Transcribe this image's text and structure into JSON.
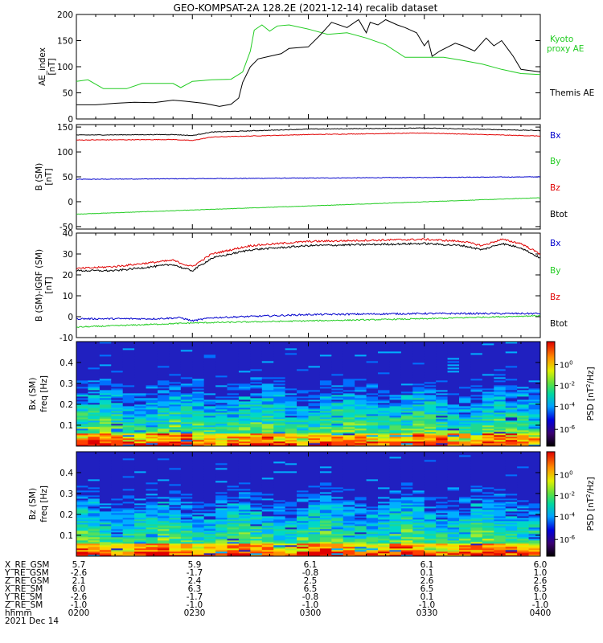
{
  "title": "GEO-KOMPSAT-2A 128.2E (2021-12-14) recalib dataset",
  "colors": {
    "black": "#000000",
    "red": "#e00000",
    "green": "#22cc22",
    "blue": "#0000cc",
    "kyoto": "#22cc22"
  },
  "chart_data": [
    {
      "type": "line",
      "ylabel": "AE_index [nT]",
      "ylim": [
        0,
        200
      ],
      "yticks": [
        0,
        50,
        100,
        150,
        200
      ],
      "series": [
        {
          "name": "Themis AE",
          "color": "#000000",
          "x": [
            "02:00",
            "02:05",
            "02:10",
            "02:15",
            "02:20",
            "02:25",
            "02:28",
            "02:33",
            "02:37",
            "02:40",
            "02:42",
            "02:43",
            "02:45",
            "02:47",
            "02:50",
            "02:53",
            "02:55",
            "03:00",
            "03:03",
            "03:06",
            "03:10",
            "03:13",
            "03:15",
            "03:16",
            "03:18",
            "03:20",
            "03:23",
            "03:25",
            "03:28",
            "03:30",
            "03:31",
            "03:32",
            "03:34",
            "03:38",
            "03:40",
            "03:43",
            "03:46",
            "03:48",
            "03:50",
            "03:53",
            "03:55",
            "04:00"
          ],
          "y": [
            27,
            27,
            30,
            32,
            31,
            36,
            34,
            30,
            24,
            28,
            40,
            70,
            100,
            115,
            120,
            125,
            135,
            138,
            160,
            185,
            175,
            190,
            165,
            185,
            180,
            190,
            180,
            175,
            165,
            140,
            150,
            120,
            130,
            145,
            140,
            130,
            155,
            140,
            150,
            120,
            95,
            90
          ]
        },
        {
          "name": "Kyoto proxy AE",
          "color": "#22cc22",
          "x": [
            "02:00",
            "02:03",
            "02:07",
            "02:10",
            "02:13",
            "02:17",
            "02:20",
            "02:25",
            "02:27",
            "02:30",
            "02:35",
            "02:40",
            "02:43",
            "02:45",
            "02:46",
            "02:48",
            "02:50",
            "02:52",
            "02:55",
            "03:00",
            "03:05",
            "03:10",
            "03:15",
            "03:20",
            "03:25",
            "03:30",
            "03:35",
            "03:40",
            "03:45",
            "03:50",
            "03:55",
            "04:00"
          ],
          "y": [
            72,
            75,
            58,
            58,
            58,
            68,
            68,
            68,
            60,
            72,
            75,
            76,
            90,
            130,
            170,
            180,
            168,
            178,
            180,
            172,
            162,
            165,
            155,
            142,
            118,
            118,
            118,
            112,
            105,
            95,
            87,
            85
          ]
        }
      ]
    },
    {
      "type": "line",
      "ylabel": "B (SM) [nT]",
      "ylim": [
        -55,
        155
      ],
      "yticks": [
        -50,
        0,
        50,
        100,
        150
      ],
      "series": [
        {
          "name": "Bx",
          "color": "#0000cc",
          "x": [
            "02:00",
            "04:00"
          ],
          "y": [
            45,
            50
          ]
        },
        {
          "name": "By",
          "color": "#22cc22",
          "x": [
            "02:00",
            "04:00"
          ],
          "y": [
            -25,
            8
          ]
        },
        {
          "name": "Bz",
          "color": "#e00000",
          "x": [
            "02:00",
            "02:25",
            "02:30",
            "02:35",
            "03:00",
            "03:30",
            "04:00"
          ],
          "y": [
            124,
            125,
            123,
            130,
            135,
            138,
            132
          ]
        },
        {
          "name": "Btot",
          "color": "#000000",
          "x": [
            "02:00",
            "02:25",
            "02:30",
            "02:35",
            "03:00",
            "03:30",
            "04:00"
          ],
          "y": [
            134,
            135,
            133,
            140,
            146,
            148,
            143
          ]
        }
      ]
    },
    {
      "type": "line",
      "ylabel": "B (SM)-IGRF (SM) [nT]",
      "ylim": [
        -10,
        40
      ],
      "yticks": [
        -10,
        0,
        10,
        20,
        30,
        40
      ],
      "series": [
        {
          "name": "Bx",
          "color": "#0000cc",
          "x": [
            "02:00",
            "02:20",
            "02:27",
            "02:30",
            "02:35",
            "03:00",
            "03:30",
            "04:00"
          ],
          "y": [
            -1,
            -1,
            -0.5,
            -2,
            -0.5,
            1,
            1.5,
            1.5
          ]
        },
        {
          "name": "By",
          "color": "#22cc22",
          "x": [
            "02:00",
            "02:30",
            "03:00",
            "03:30",
            "04:00"
          ],
          "y": [
            -5,
            -3,
            -2,
            -1,
            0.5
          ]
        },
        {
          "name": "Bz",
          "color": "#e00000",
          "x": [
            "02:00",
            "02:10",
            "02:20",
            "02:25",
            "02:28",
            "02:30",
            "02:35",
            "02:45",
            "03:00",
            "03:30",
            "03:40",
            "03:45",
            "03:50",
            "03:55",
            "04:00"
          ],
          "y": [
            23,
            24,
            26,
            27,
            25,
            24,
            30,
            34,
            36,
            37,
            36,
            34,
            37,
            35,
            30
          ]
        },
        {
          "name": "Btot",
          "color": "#000000",
          "x": [
            "02:00",
            "02:10",
            "02:20",
            "02:25",
            "02:28",
            "02:30",
            "02:35",
            "02:45",
            "03:00",
            "03:30",
            "03:40",
            "03:45",
            "03:50",
            "03:55",
            "04:00"
          ],
          "y": [
            22,
            22,
            24,
            25,
            23,
            22,
            28,
            32,
            34,
            35,
            34,
            32,
            35,
            33,
            28
          ]
        }
      ]
    },
    {
      "type": "heatmap",
      "ylabel": "Bx (SM) freq [Hz]",
      "ylim": [
        0,
        0.5
      ],
      "yticks": [
        0.1,
        0.2,
        0.3,
        0.4
      ],
      "colorbar": {
        "label": "PSD [nT²/Hz]",
        "ticks": [
          "10^0",
          "10^-2",
          "10^-4",
          "10^-6"
        ]
      }
    },
    {
      "type": "heatmap",
      "ylabel": "Bz (SM) freq [Hz]",
      "ylim": [
        0,
        0.5
      ],
      "yticks": [
        0.1,
        0.2,
        0.3,
        0.4
      ],
      "colorbar": {
        "label": "PSD [nT²/Hz]",
        "ticks": [
          "10^0",
          "10^-2",
          "10^-4",
          "10^-6"
        ]
      }
    }
  ],
  "orbit": {
    "labels": [
      "X_RE_GSM",
      "Y_RE_GSM",
      "Z_RE_GSM",
      "X_RE_SM",
      "Y_RE_SM",
      "Z_RE_SM",
      "hhmm"
    ],
    "date": "2021 Dec 14",
    "columns": [
      {
        "values": [
          "5.7",
          "-2.6",
          "2.1",
          "6.0",
          "-2.6",
          "-1.0",
          "0200"
        ]
      },
      {
        "values": [
          "5.9",
          "-1.7",
          "2.4",
          "6.3",
          "-1.7",
          "-1.0",
          "0230"
        ]
      },
      {
        "values": [
          "6.1",
          "-0.8",
          "2.5",
          "6.5",
          "-0.8",
          "-1.0",
          "0300"
        ]
      },
      {
        "values": [
          "6.1",
          "0.1",
          "2.6",
          "6.5",
          "0.1",
          "-1.0",
          "0330"
        ]
      },
      {
        "values": [
          "6.0",
          "1.0",
          "2.6",
          "6.5",
          "1.0",
          "-1.0",
          "0400"
        ]
      }
    ]
  }
}
